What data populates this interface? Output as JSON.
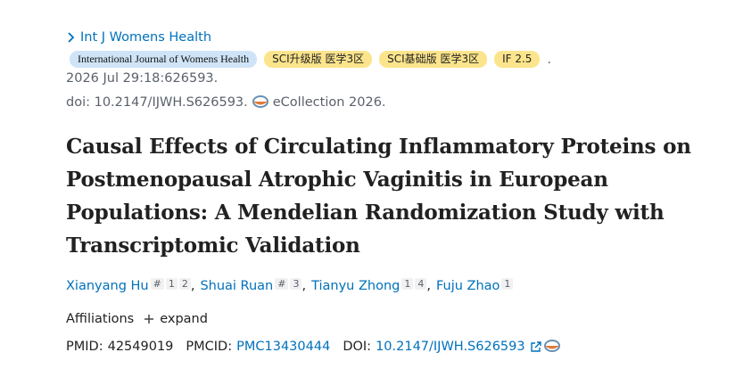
{
  "journal": {
    "link": "Int J Womens Health",
    "badges": [
      "International Journal of Womens Health",
      "SCI升级版 医学3区",
      "SCI基础版 医学3区",
      "IF 2.5"
    ],
    "badges_end": "."
  },
  "citation": {
    "date": "2026 Jul 29:18:626593.",
    "doi": "doi: 10.2147/IJWH.S626593.",
    "collection": "eCollection 2026."
  },
  "title": "Causal Effects of Circulating Inflammatory Proteins on Postmenopausal Atrophic Vaginitis in European Populations: A Mendelian Randomization Study with Transcriptomic Validation",
  "authors": {
    "separator": ",",
    "list": [
      {
        "name": "Xianyang Hu",
        "marks": [
          "#",
          "1",
          "2"
        ]
      },
      {
        "name": "Shuai Ruan",
        "marks": [
          "#",
          "3"
        ]
      },
      {
        "name": "Tianyu Zhong",
        "marks": [
          "1",
          "4"
        ]
      },
      {
        "name": "Fuju Zhao",
        "marks": [
          "1"
        ]
      }
    ]
  },
  "affiliations": {
    "label": "Affiliations",
    "toggle": "expand"
  },
  "ids": {
    "pmid_label": "PMID:",
    "pmid": "42549019",
    "pmcid_label": "PMCID:",
    "pmcid": "PMC13430444",
    "doi_label": "DOI:",
    "doi": "10.2147/IJWH.S626593"
  }
}
